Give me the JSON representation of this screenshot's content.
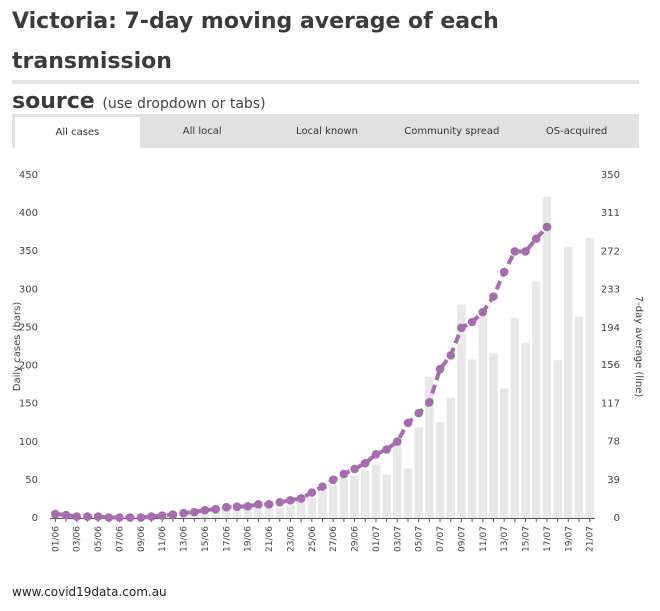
{
  "page": {
    "title_main": "Victoria: 7-day moving average of each transmission",
    "title_second": "source",
    "title_hint": "(use dropdown or tabs)",
    "source": "www.covid19data.com.au"
  },
  "tabs": [
    {
      "label": "All cases",
      "active": true
    },
    {
      "label": "All local",
      "active": false
    },
    {
      "label": "Local known",
      "active": false
    },
    {
      "label": "Community spread",
      "active": false
    },
    {
      "label": "OS-acquired",
      "active": false
    }
  ],
  "colors": {
    "bar": "#e8e8e8",
    "line": "#a56dad",
    "axis": "#555555",
    "tick": "#444444"
  },
  "chart_data": {
    "type": "bar",
    "title": "",
    "xlabel": "",
    "ylabel": "Daily cases (bars)",
    "ylabel_right": "7-day average (line)",
    "ylim": [
      0,
      450
    ],
    "ylim_right": [
      0,
      350
    ],
    "yticks": [
      0,
      50,
      100,
      150,
      200,
      250,
      300,
      350,
      400,
      450
    ],
    "yticks_right": [
      0,
      39,
      78,
      117,
      156,
      194,
      233,
      272,
      311,
      350
    ],
    "categories": [
      "01/06",
      "02/06",
      "03/06",
      "04/06",
      "05/06",
      "06/06",
      "07/06",
      "08/06",
      "09/06",
      "10/06",
      "11/06",
      "12/06",
      "13/06",
      "14/06",
      "15/06",
      "16/06",
      "17/06",
      "18/06",
      "19/06",
      "20/06",
      "21/06",
      "22/06",
      "23/06",
      "24/06",
      "25/06",
      "26/06",
      "27/06",
      "28/06",
      "29/06",
      "30/06",
      "01/07",
      "02/07",
      "03/07",
      "04/07",
      "05/07",
      "06/07",
      "07/07",
      "08/07",
      "09/07",
      "10/07",
      "11/07",
      "12/07",
      "13/07",
      "14/07",
      "15/07",
      "16/07",
      "17/07",
      "18/07",
      "19/07",
      "20/07",
      "21/07"
    ],
    "tick_labels": [
      "01/06",
      "03/06",
      "05/06",
      "07/06",
      "09/06",
      "11/06",
      "13/06",
      "15/06",
      "17/06",
      "19/06",
      "21/06",
      "23/06",
      "25/06",
      "27/06",
      "29/06",
      "01/07",
      "03/07",
      "05/07",
      "07/07",
      "09/07",
      "11/07",
      "13/07",
      "15/07",
      "17/07",
      "19/07",
      "21/07"
    ],
    "series": [
      {
        "name": "Daily cases",
        "kind": "bar",
        "axis": "left",
        "values": [
          4,
          1,
          2,
          1,
          2,
          1,
          0,
          1,
          1,
          2,
          3,
          3,
          7,
          6,
          6,
          10,
          11,
          10,
          13,
          18,
          17,
          13,
          17,
          23,
          27,
          36,
          44,
          57,
          56,
          62,
          70,
          57,
          99,
          65,
          119,
          185,
          126,
          158,
          280,
          208,
          264,
          216,
          170,
          262,
          230,
          310,
          421,
          207,
          356,
          264,
          367
        ]
      },
      {
        "name": "7-day average",
        "kind": "line",
        "axis": "right",
        "values": [
          4,
          3,
          1.5,
          1.5,
          1.5,
          0.5,
          0.5,
          0.5,
          0.5,
          1.5,
          2.5,
          3.5,
          5,
          6,
          8,
          9,
          11,
          11.5,
          12,
          14,
          14,
          16,
          18,
          20,
          26,
          32,
          39,
          45,
          50,
          56,
          65,
          70,
          78,
          97,
          107,
          118,
          152,
          166,
          194,
          200,
          210,
          226,
          251,
          272,
          272,
          285,
          297,
          null,
          null,
          null,
          null
        ]
      }
    ]
  }
}
